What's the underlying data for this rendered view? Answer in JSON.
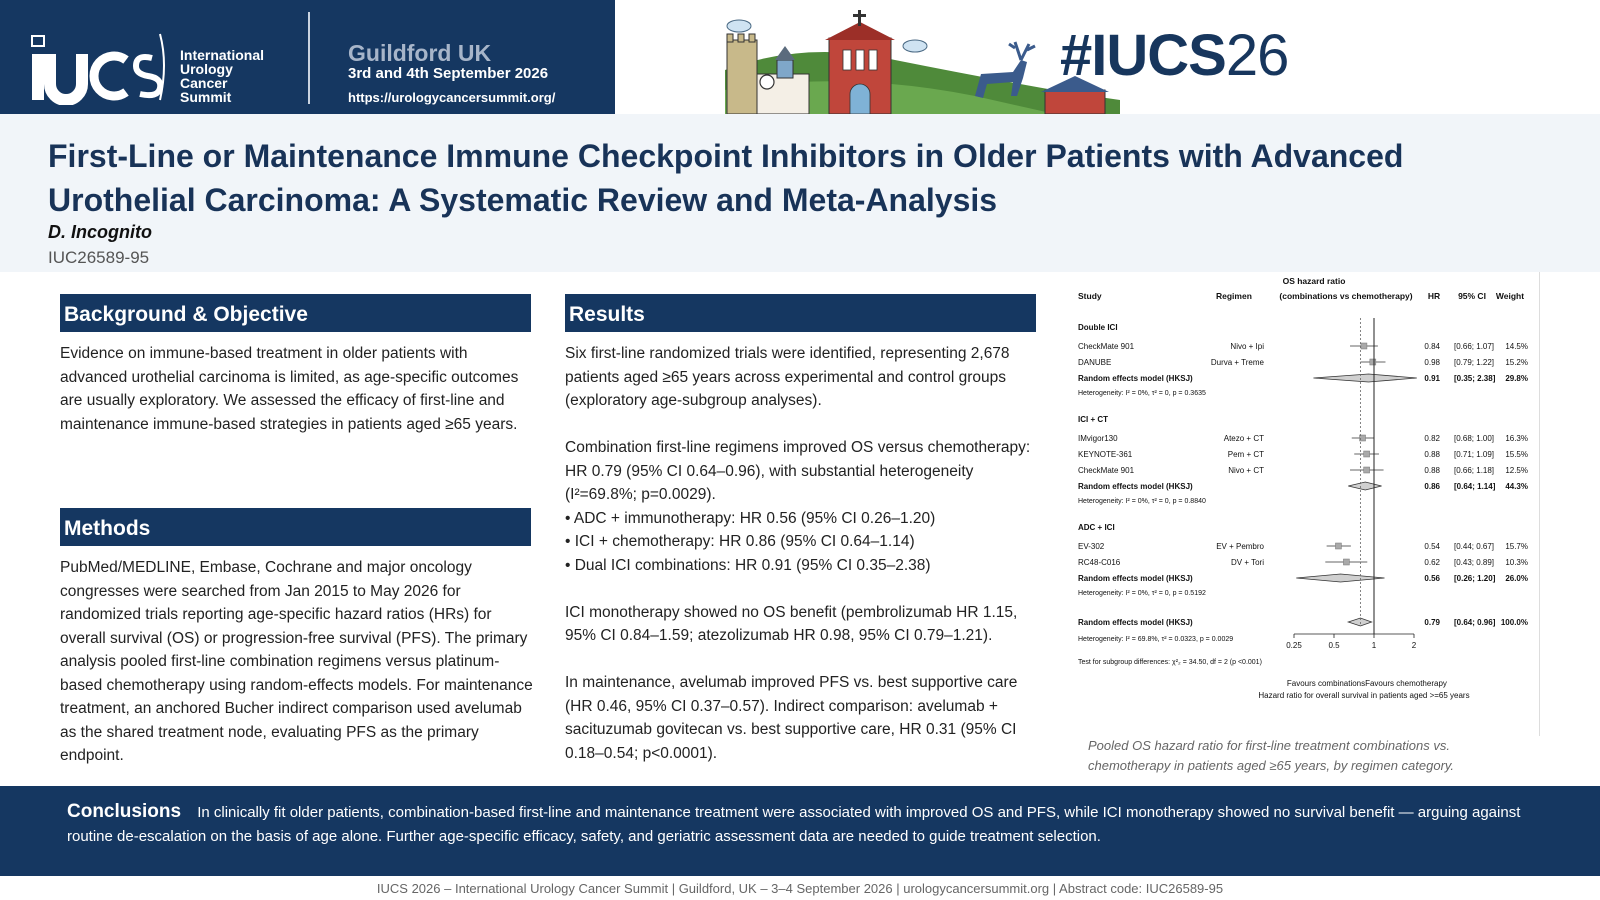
{
  "banner": {
    "org_lines": [
      "International",
      "Urology",
      "Cancer",
      "Summit"
    ],
    "event_city": "Guildford UK",
    "event_dates": "3rd and 4th September 2026",
    "event_url": "https://urologycancersummit.org/",
    "hashtag_prefix": "#IUCS",
    "hashtag_year": "26",
    "colors": {
      "navy": "#153761",
      "title_blue": "#183358"
    }
  },
  "header": {
    "title": "First-Line or Maintenance Immune Checkpoint Inhibitors in Older Patients with Advanced Urothelial Carcinoma: A Systematic Review and Meta-Analysis",
    "author": "D. Incognito",
    "abstract_id": "IUC26589-95"
  },
  "background": {
    "heading": "Background & Objective",
    "text": "Evidence on immune-based treatment in older patients with advanced urothelial carcinoma is limited, as age-specific outcomes are usually exploratory. We assessed the efficacy of first-line and maintenance immune-based strategies in patients aged ≥65 years."
  },
  "methods": {
    "heading": "Methods",
    "text": "PubMed/MEDLINE, Embase, Cochrane and major oncology congresses were searched from Jan 2015 to May 2026 for randomized trials reporting age-specific hazard ratios (HRs) for overall survival (OS) or progression-free survival (PFS). The primary analysis pooled first-line combination regimens versus platinum-based chemotherapy using random-effects models. For maintenance treatment, an anchored Bucher indirect comparison used avelumab as the shared treatment node, evaluating PFS as the primary endpoint."
  },
  "results": {
    "heading": "Results",
    "p1": "Six first-line randomized trials were identified, representing 2,678 patients aged ≥65 years across experimental and control groups (exploratory age-subgroup analyses).",
    "p2": "Combination first-line regimens improved OS versus chemotherapy: HR 0.79 (95% CI 0.64–0.96), with substantial heterogeneity (I²=69.8%; p=0.0029).",
    "bullets": [
      "• ADC + immunotherapy: HR 0.56 (95% CI 0.26–1.20)",
      "• ICI + chemotherapy: HR 0.86 (95% CI 0.64–1.14)",
      "• Dual ICI combinations: HR 0.91 (95% CI 0.35–2.38)"
    ],
    "p3": "ICI monotherapy showed no OS benefit (pembrolizumab HR 1.15, 95% CI 0.84–1.59; atezolizumab HR 0.98, 95% CI 0.79–1.21).",
    "p4": "In maintenance, avelumab improved PFS vs. best supportive care (HR 0.46, 95% CI 0.37–0.57). Indirect comparison: avelumab + sacituzumab govitecan vs. best supportive care, HR 0.31 (95% CI 0.18–0.54; p<0.0001)."
  },
  "forest_plot": {
    "caption": "Pooled OS hazard ratio for first-line treatment combinations vs. chemotherapy in patients aged ≥65 years, by regimen category.",
    "col_study": "Study",
    "col_regimen": "Regimen",
    "col_plot_top": "OS hazard ratio",
    "col_plot": "(combinations vs chemotherapy)",
    "col_hr": "HR",
    "col_ci": "95% CI",
    "col_weight": "Weight",
    "xlabel_left": "Favours combinations",
    "xlabel_right": "Favours chemotherapy",
    "xlabel": "Hazard ratio for overall survival in patients aged >=65 years",
    "subgroup_test": "Test for subgroup differences: χ²₂ = 34.50, df = 2 (p <0.001)",
    "overall_label": "Random effects model (HKSJ)",
    "overall_het": "Heterogeneity: I² = 69.8%, τ² = 0.0323, p = 0.0029"
  },
  "chart_data": {
    "type": "forest",
    "x_scale": "log",
    "xlim": [
      0.25,
      2
    ],
    "x_ticks": [
      "0.25",
      "0.5",
      "1",
      "2"
    ],
    "reference_line": 1,
    "pooled_dashed_line": 0.79,
    "groups": [
      {
        "name": "Double ICI",
        "studies": [
          {
            "study": "CheckMate 901",
            "regimen": "Nivo + Ipi",
            "hr": 0.84,
            "lo": 0.66,
            "hi": 1.07,
            "hr_text": "0.84",
            "ci_text": "[0.66; 1.07]",
            "weight": "14.5%"
          },
          {
            "study": "DANUBE",
            "regimen": "Durva + Treme",
            "hr": 0.98,
            "lo": 0.79,
            "hi": 1.22,
            "hr_text": "0.98",
            "ci_text": "[0.79; 1.22]",
            "weight": "15.2%"
          }
        ],
        "pooled": {
          "label": "Random effects model (HKSJ)",
          "hr": 0.91,
          "lo": 0.35,
          "hi": 2.38,
          "hr_text": "0.91",
          "ci_text": "[0.35; 2.38]",
          "weight": "29.8%"
        },
        "heterogeneity": "Heterogeneity: I² = 0%, τ² = 0, p = 0.3635"
      },
      {
        "name": "ICI + CT",
        "studies": [
          {
            "study": "IMvigor130",
            "regimen": "Atezo + CT",
            "hr": 0.82,
            "lo": 0.68,
            "hi": 1.0,
            "hr_text": "0.82",
            "ci_text": "[0.68; 1.00]",
            "weight": "16.3%"
          },
          {
            "study": "KEYNOTE-361",
            "regimen": "Pem + CT",
            "hr": 0.88,
            "lo": 0.71,
            "hi": 1.09,
            "hr_text": "0.88",
            "ci_text": "[0.71; 1.09]",
            "weight": "15.5%"
          },
          {
            "study": "CheckMate 901",
            "regimen": "Nivo + CT",
            "hr": 0.88,
            "lo": 0.66,
            "hi": 1.18,
            "hr_text": "0.88",
            "ci_text": "[0.66; 1.18]",
            "weight": "12.5%"
          }
        ],
        "pooled": {
          "label": "Random effects model (HKSJ)",
          "hr": 0.86,
          "lo": 0.64,
          "hi": 1.14,
          "hr_text": "0.86",
          "ci_text": "[0.64; 1.14]",
          "weight": "44.3%"
        },
        "heterogeneity": "Heterogeneity: I² = 0%, τ² = 0, p = 0.8840"
      },
      {
        "name": "ADC + ICI",
        "studies": [
          {
            "study": "EV-302",
            "regimen": "EV + Pembro",
            "hr": 0.54,
            "lo": 0.44,
            "hi": 0.67,
            "hr_text": "0.54",
            "ci_text": "[0.44; 0.67]",
            "weight": "15.7%"
          },
          {
            "study": "RC48-C016",
            "regimen": "DV + Tori",
            "hr": 0.62,
            "lo": 0.43,
            "hi": 0.89,
            "hr_text": "0.62",
            "ci_text": "[0.43; 0.89]",
            "weight": "10.3%"
          }
        ],
        "pooled": {
          "label": "Random effects model (HKSJ)",
          "hr": 0.56,
          "lo": 0.26,
          "hi": 1.2,
          "hr_text": "0.56",
          "ci_text": "[0.26; 1.20]",
          "weight": "26.0%"
        },
        "heterogeneity": "Heterogeneity: I² = 0%, τ² = 0, p = 0.5192"
      }
    ],
    "overall": {
      "hr": 0.79,
      "lo": 0.64,
      "hi": 0.96,
      "hr_text": "0.79",
      "ci_text": "[0.64; 0.96]",
      "weight": "100.0%"
    }
  },
  "conclusions": {
    "label": "Conclusions",
    "text": "In clinically fit older patients, combination-based first-line and maintenance treatment were associated with improved OS and PFS, while ICI monotherapy showed no survival benefit — arguing against routine de-escalation on the basis of age alone. Further age-specific efficacy, safety, and geriatric assessment data are needed to guide treatment selection."
  },
  "footer": {
    "text": "IUCS 2026 – International Urology Cancer Summit  |  Guildford, UK – 3–4 September 2026  |  urologycancersummit.org  |  Abstract code: IUC26589-95"
  }
}
